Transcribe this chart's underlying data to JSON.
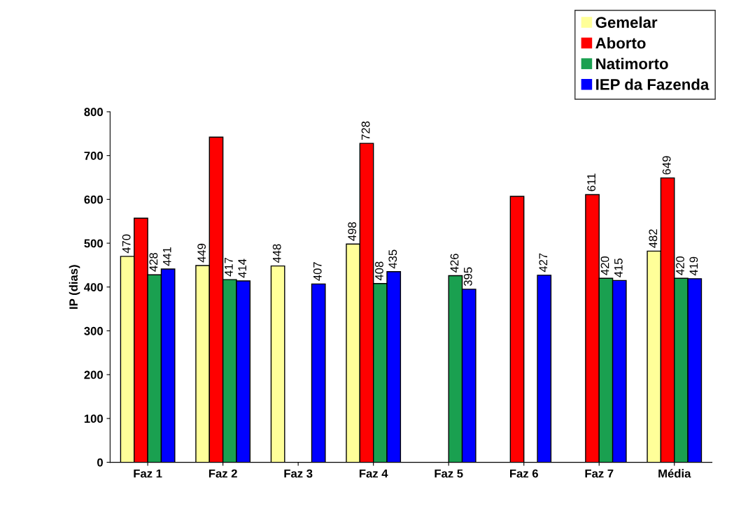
{
  "chart_data": {
    "type": "bar",
    "ylabel": "IP (dias)",
    "categories": [
      "Faz 1",
      "Faz 2",
      "Faz 3",
      "Faz 4",
      "Faz 5",
      "Faz 6",
      "Faz 7",
      "Média"
    ],
    "series": [
      {
        "name": "Gemelar",
        "color": "#ffff99",
        "values": [
          470,
          449,
          448,
          498,
          null,
          null,
          null,
          482
        ],
        "value_labels": [
          "470",
          "449",
          "448",
          "498",
          null,
          null,
          null,
          "482"
        ]
      },
      {
        "name": "Aborto",
        "color": "#ff0000",
        "values": [
          557,
          742,
          null,
          728,
          null,
          607,
          611,
          649
        ],
        "value_labels": [
          null,
          null,
          null,
          "728",
          null,
          null,
          "611",
          "649"
        ]
      },
      {
        "name": "Natimorto",
        "color": "#1aa050",
        "values": [
          428,
          417,
          null,
          408,
          426,
          null,
          420,
          420
        ],
        "value_labels": [
          "428",
          "417",
          null,
          "408",
          "426",
          null,
          "420",
          "420"
        ]
      },
      {
        "name": "IEP da Fazenda",
        "color": "#0000ff",
        "values": [
          441,
          414,
          407,
          435,
          395,
          427,
          415,
          419
        ],
        "value_labels": [
          "441",
          "414",
          "407",
          "435",
          "395",
          "427",
          "415",
          "419"
        ]
      }
    ],
    "ylim": [
      0,
      800
    ],
    "yticks": [
      0,
      100,
      200,
      300,
      400,
      500,
      600,
      700,
      800
    ],
    "grid": false,
    "legend": "top right"
  }
}
